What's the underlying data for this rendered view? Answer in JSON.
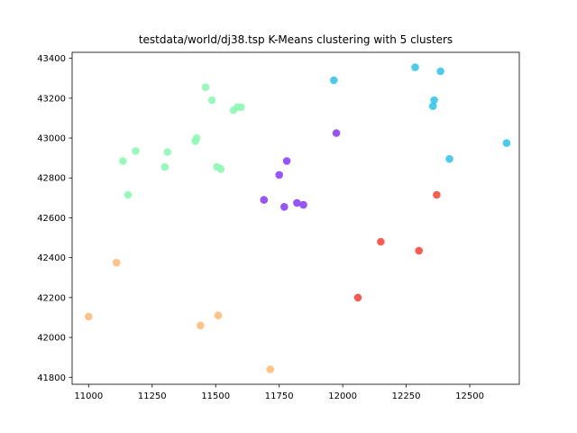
{
  "chart_data": {
    "type": "scatter",
    "title": "testdata/world/dj38.tsp K-Means clustering with 5 clusters",
    "xlabel": "",
    "ylabel": "",
    "xlim": [
      10935,
      12695
    ],
    "ylim": [
      41765,
      43430
    ],
    "xticks": [
      11000,
      11250,
      11500,
      11750,
      12000,
      12250,
      12500
    ],
    "yticks": [
      41800,
      42000,
      42200,
      42400,
      42600,
      42800,
      43000,
      43200,
      43400
    ],
    "grid": false,
    "legend": "none",
    "series": [
      {
        "color": "#8a3ef5",
        "points": [
          [
            11690,
            42690
          ],
          [
            11750,
            42815
          ],
          [
            11780,
            42885
          ],
          [
            11770,
            42655
          ],
          [
            11820,
            42675
          ],
          [
            11845,
            42665
          ],
          [
            11975,
            43025
          ]
        ]
      },
      {
        "color": "#35c3e8",
        "points": [
          [
            11965,
            43290
          ],
          [
            12285,
            43355
          ],
          [
            12385,
            43335
          ],
          [
            12360,
            43190
          ],
          [
            12355,
            43160
          ],
          [
            12420,
            42895
          ],
          [
            12645,
            42975
          ]
        ]
      },
      {
        "color": "#8cf7b4",
        "points": [
          [
            11460,
            43255
          ],
          [
            11485,
            43190
          ],
          [
            11570,
            43140
          ],
          [
            11585,
            43155
          ],
          [
            11600,
            43155
          ],
          [
            11420,
            42985
          ],
          [
            11425,
            43000
          ],
          [
            11310,
            42930
          ],
          [
            11185,
            42935
          ],
          [
            11135,
            42885
          ],
          [
            11300,
            42855
          ],
          [
            11505,
            42855
          ],
          [
            11520,
            42845
          ],
          [
            11155,
            42715
          ]
        ]
      },
      {
        "color": "#f5483b",
        "points": [
          [
            12370,
            42715
          ],
          [
            12150,
            42480
          ],
          [
            12300,
            42435
          ],
          [
            12060,
            42200
          ]
        ]
      },
      {
        "color": "#fdbb79",
        "points": [
          [
            11110,
            42375
          ],
          [
            11000,
            42105
          ],
          [
            11510,
            42110
          ],
          [
            11440,
            42060
          ],
          [
            11715,
            41840
          ]
        ]
      }
    ]
  }
}
